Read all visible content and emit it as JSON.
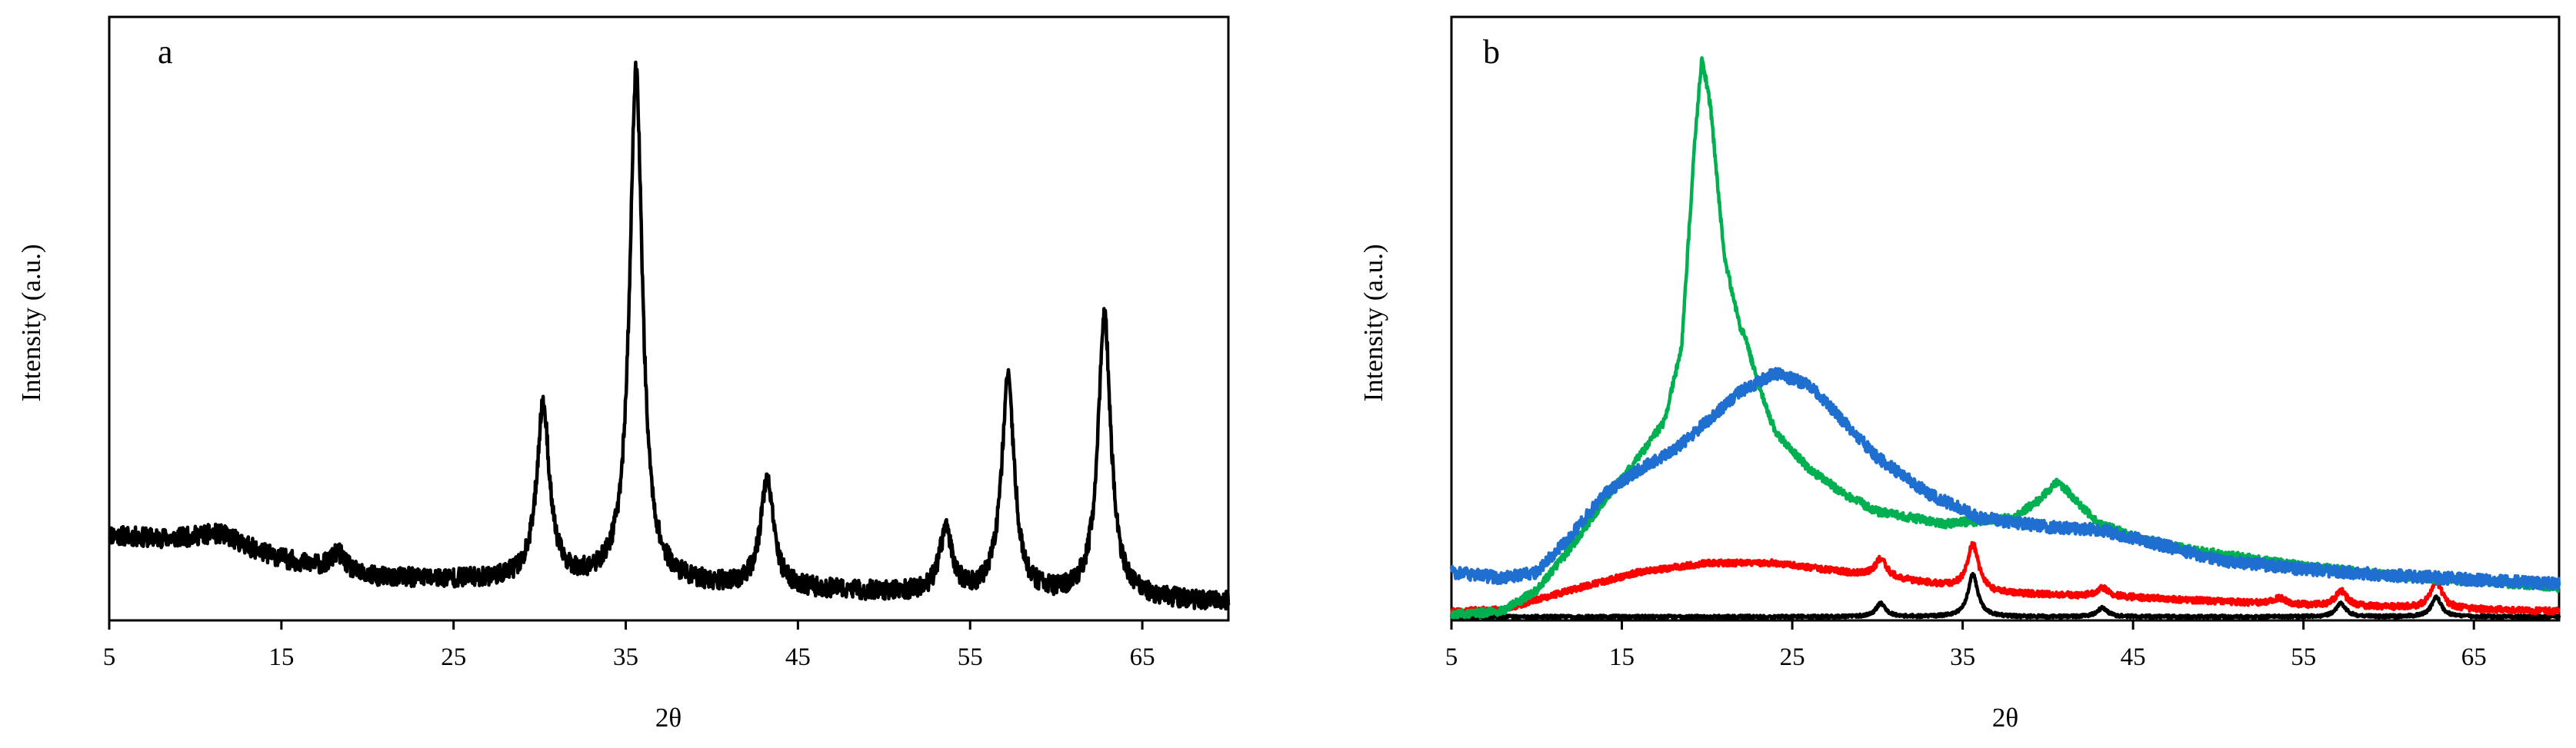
{
  "chart_data": [
    {
      "type": "line",
      "panel_label": "a",
      "xlabel": "2θ",
      "ylabel": "Intensity (a.u.)",
      "xlim": [
        5,
        70
      ],
      "ylim": [
        0,
        100
      ],
      "xticks": [
        5,
        15,
        25,
        35,
        45,
        55,
        65
      ],
      "series": [
        {
          "name": "pattern",
          "color": "#000000",
          "baseline": [
            [
              5,
              14
            ],
            [
              10,
              12.5
            ],
            [
              20,
              7
            ],
            [
              28,
              6.5
            ],
            [
              40,
              5.5
            ],
            [
              55,
              4
            ],
            [
              70,
              3
            ]
          ],
          "peaks": [
            {
              "x": 11.5,
              "h": 2.5,
              "w": 1.8
            },
            {
              "x": 18.3,
              "h": 3.0,
              "w": 0.5
            },
            {
              "x": 30.2,
              "h": 29,
              "w": 0.45
            },
            {
              "x": 35.6,
              "h": 85,
              "w": 0.45
            },
            {
              "x": 43.2,
              "h": 18,
              "w": 0.45
            },
            {
              "x": 53.6,
              "h": 10.5,
              "w": 0.45
            },
            {
              "x": 57.2,
              "h": 36,
              "w": 0.45
            },
            {
              "x": 62.8,
              "h": 47,
              "w": 0.45
            }
          ],
          "noise": 1.6
        }
      ]
    },
    {
      "type": "line",
      "panel_label": "b",
      "xlabel": "2θ",
      "ylabel": "Intensity (a.u.)",
      "xlim": [
        5,
        70
      ],
      "ylim": [
        0,
        100
      ],
      "xticks": [
        5,
        15,
        25,
        35,
        45,
        55,
        65
      ],
      "series": [
        {
          "name": "black",
          "color": "#000000",
          "baseline": [
            [
              5,
              0.6
            ],
            [
              70,
              0.6
            ]
          ],
          "peaks": [
            {
              "x": 30.2,
              "h": 2.2,
              "w": 0.35
            },
            {
              "x": 35.6,
              "h": 7.0,
              "w": 0.35
            },
            {
              "x": 43.2,
              "h": 1.5,
              "w": 0.35
            },
            {
              "x": 57.2,
              "h": 2.2,
              "w": 0.35
            },
            {
              "x": 62.8,
              "h": 3.2,
              "w": 0.35
            }
          ],
          "noise": 0.25
        },
        {
          "name": "red",
          "color": "#ff0000",
          "baseline": [
            [
              5,
              1.5
            ],
            [
              8,
              1.8
            ],
            [
              12,
              5
            ],
            [
              16,
              8
            ],
            [
              20,
              9.5
            ],
            [
              24,
              9.5
            ],
            [
              28,
              8
            ],
            [
              32,
              6.5
            ],
            [
              37,
              4.5
            ],
            [
              45,
              3.8
            ],
            [
              55,
              2.5
            ],
            [
              70,
              1.5
            ]
          ],
          "peaks": [
            {
              "x": 30.2,
              "h": 3.0,
              "w": 0.4
            },
            {
              "x": 35.6,
              "h": 7.5,
              "w": 0.4
            },
            {
              "x": 43.2,
              "h": 1.5,
              "w": 0.4
            },
            {
              "x": 53.6,
              "h": 1.0,
              "w": 0.4
            },
            {
              "x": 57.2,
              "h": 2.5,
              "w": 0.4
            },
            {
              "x": 62.8,
              "h": 4.5,
              "w": 0.4
            }
          ],
          "noise": 0.5
        },
        {
          "name": "green",
          "color": "#00b050",
          "baseline": [
            [
              5,
              1
            ],
            [
              8,
              1.5
            ],
            [
              10,
              5
            ],
            [
              12,
              12
            ],
            [
              14,
              20
            ],
            [
              16,
              27
            ],
            [
              17.5,
              33
            ],
            [
              18.5,
              45
            ],
            [
              19.3,
              80
            ],
            [
              19.7,
              93
            ],
            [
              20.2,
              85
            ],
            [
              21,
              60
            ],
            [
              22,
              45
            ],
            [
              23,
              38
            ],
            [
              24,
              31
            ],
            [
              26,
              25
            ],
            [
              28,
              21
            ],
            [
              30,
              18
            ],
            [
              34,
              16
            ],
            [
              38,
              17
            ],
            [
              39.5,
              20
            ],
            [
              40.6,
              23
            ],
            [
              41.6,
              20
            ],
            [
              43,
              16
            ],
            [
              46,
              13
            ],
            [
              50,
              11
            ],
            [
              55,
              9
            ],
            [
              60,
              7.5
            ],
            [
              70,
              5.5
            ]
          ],
          "peaks": [
            {
              "x": 22.2,
              "h": 3.5,
              "w": 0.6
            }
          ],
          "noise": 0.7
        },
        {
          "name": "blue",
          "color": "#1f6fd1",
          "baseline": [
            [
              5,
              8
            ],
            [
              8,
              7
            ],
            [
              10,
              8
            ],
            [
              12,
              14
            ],
            [
              14,
              21
            ],
            [
              16,
              25
            ],
            [
              18,
              28
            ],
            [
              20,
              33
            ],
            [
              22,
              38
            ],
            [
              24,
              41
            ],
            [
              26,
              39
            ],
            [
              28,
              33
            ],
            [
              30,
              27
            ],
            [
              33,
              21
            ],
            [
              36,
              17
            ],
            [
              40,
              15.5
            ],
            [
              43,
              15
            ],
            [
              46,
              13
            ],
            [
              50,
              10
            ],
            [
              55,
              8.5
            ],
            [
              60,
              7.5
            ],
            [
              70,
              6
            ]
          ],
          "peaks": [],
          "noise": 1.0
        }
      ]
    }
  ]
}
